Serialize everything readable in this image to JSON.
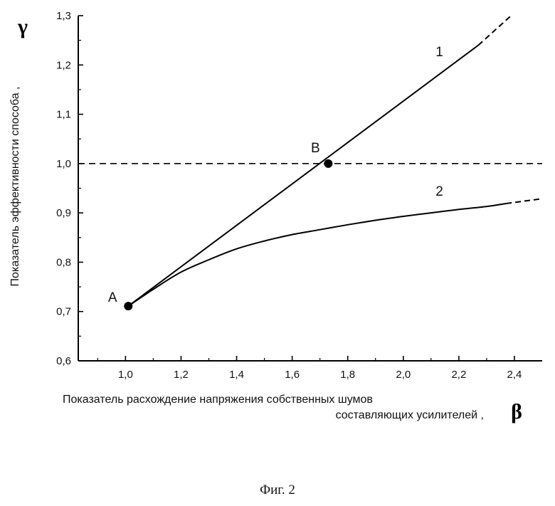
{
  "chart_data": {
    "type": "line",
    "title": "",
    "xlabel_line1": "Показатель расхождение напряжения собственных шумов",
    "xlabel_line2": "составляющих усилителей ,",
    "xsymbol": "β",
    "ylabel": "Показатель эффективности способа ,",
    "ysymbol": "γ",
    "xlim": [
      0.83,
      2.5
    ],
    "ylim": [
      0.6,
      1.3
    ],
    "x_ticks": [
      1.0,
      1.2,
      1.4,
      1.6,
      1.8,
      2.0,
      2.2,
      2.4
    ],
    "x_tick_labels": [
      "1,0",
      "1,2",
      "1,4",
      "1,6",
      "1,8",
      "2,0",
      "2,2",
      "2,4"
    ],
    "y_ticks": [
      0.6,
      0.7,
      0.8,
      0.9,
      1.0,
      1.1,
      1.2,
      1.3
    ],
    "y_tick_labels": [
      "0,6",
      "0,7",
      "0,8",
      "0,9",
      "1,0",
      "1,1",
      "1,2",
      "1,3"
    ],
    "grid": false,
    "reference_line": {
      "y": 1.0,
      "style": "dashed"
    },
    "series": [
      {
        "name": "1",
        "points": [
          [
            1.01,
            0.711
          ],
          [
            1.2,
            0.8
          ],
          [
            1.4,
            0.893
          ],
          [
            1.6,
            0.98
          ],
          [
            1.73,
            1.0
          ],
          [
            1.9,
            1.085
          ],
          [
            2.1,
            1.165
          ],
          [
            2.27,
            1.24
          ]
        ],
        "dashed_extension": [
          [
            2.27,
            1.24
          ],
          [
            2.39,
            1.301
          ]
        ]
      },
      {
        "name": "2",
        "points": [
          [
            1.01,
            0.711
          ],
          [
            1.1,
            0.745
          ],
          [
            1.2,
            0.78
          ],
          [
            1.3,
            0.805
          ],
          [
            1.4,
            0.827
          ],
          [
            1.5,
            0.843
          ],
          [
            1.6,
            0.856
          ],
          [
            1.7,
            0.866
          ],
          [
            1.8,
            0.876
          ],
          [
            1.9,
            0.885
          ],
          [
            2.0,
            0.893
          ],
          [
            2.1,
            0.9
          ],
          [
            2.2,
            0.907
          ],
          [
            2.3,
            0.913
          ],
          [
            2.37,
            0.919
          ]
        ],
        "dashed_extension": [
          [
            2.37,
            0.919
          ],
          [
            2.49,
            0.928
          ]
        ]
      }
    ],
    "markers": [
      {
        "label": "A",
        "x": 1.01,
        "y": 0.711
      },
      {
        "label": "B",
        "x": 1.73,
        "y": 1.0
      }
    ],
    "series_labels": [
      {
        "text": "1",
        "x": 2.13,
        "y": 1.218
      },
      {
        "text": "2",
        "x": 2.13,
        "y": 0.935
      }
    ]
  },
  "figure_caption": "Фиг. 2"
}
